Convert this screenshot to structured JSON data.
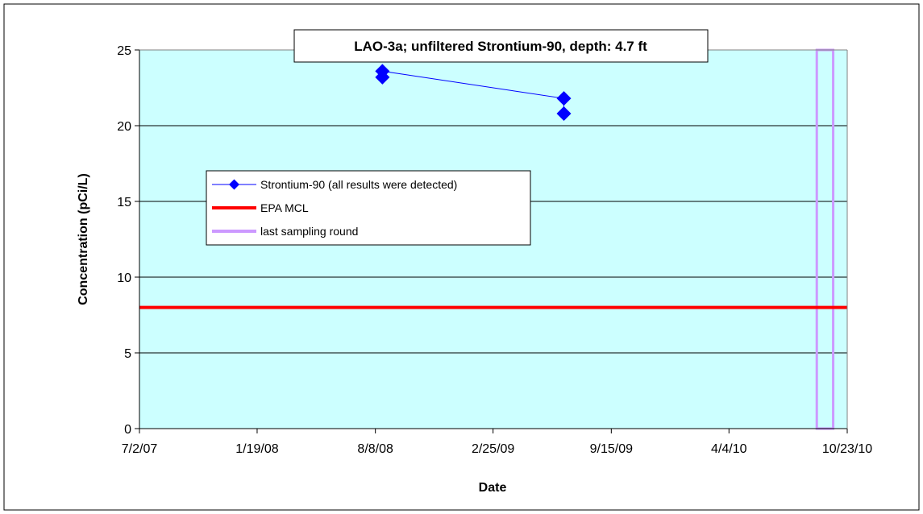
{
  "chart_data": {
    "type": "line",
    "title": "LAO-3a; unfiltered Strontium-90, depth: 4.7 ft",
    "xlabel": "Date",
    "ylabel": "Concentration (pCi/L)",
    "xlim": [
      "7/2/07",
      "10/23/10"
    ],
    "ylim": [
      0,
      25
    ],
    "x_ticks": [
      "7/2/07",
      "1/19/08",
      "8/8/08",
      "2/25/09",
      "9/15/09",
      "4/4/10",
      "10/23/10"
    ],
    "y_ticks": [
      0,
      5,
      10,
      15,
      20,
      25
    ],
    "grid": "horizontal",
    "legend_position": "center-left",
    "series": [
      {
        "name": "Strontium-90 (all results were detected)",
        "color": "#0000ff",
        "marker": "diamond",
        "points": [
          {
            "x": "8/20/08",
            "y": 23.2
          },
          {
            "x": "8/20/08",
            "y": 23.6
          },
          {
            "x": "6/26/09",
            "y": 21.8
          },
          {
            "x": "6/26/09",
            "y": 20.8
          }
        ]
      },
      {
        "name": "EPA MCL",
        "color": "#ff0000",
        "value": 8
      },
      {
        "name": "last sampling round",
        "color": "#cc99ff",
        "x_range": [
          "9/1/10",
          "9/29/10"
        ],
        "y_range": [
          0,
          25
        ]
      }
    ],
    "colors": {
      "plot_background": "#ccffff",
      "axis": "#000000",
      "gridline": "#000000"
    }
  }
}
